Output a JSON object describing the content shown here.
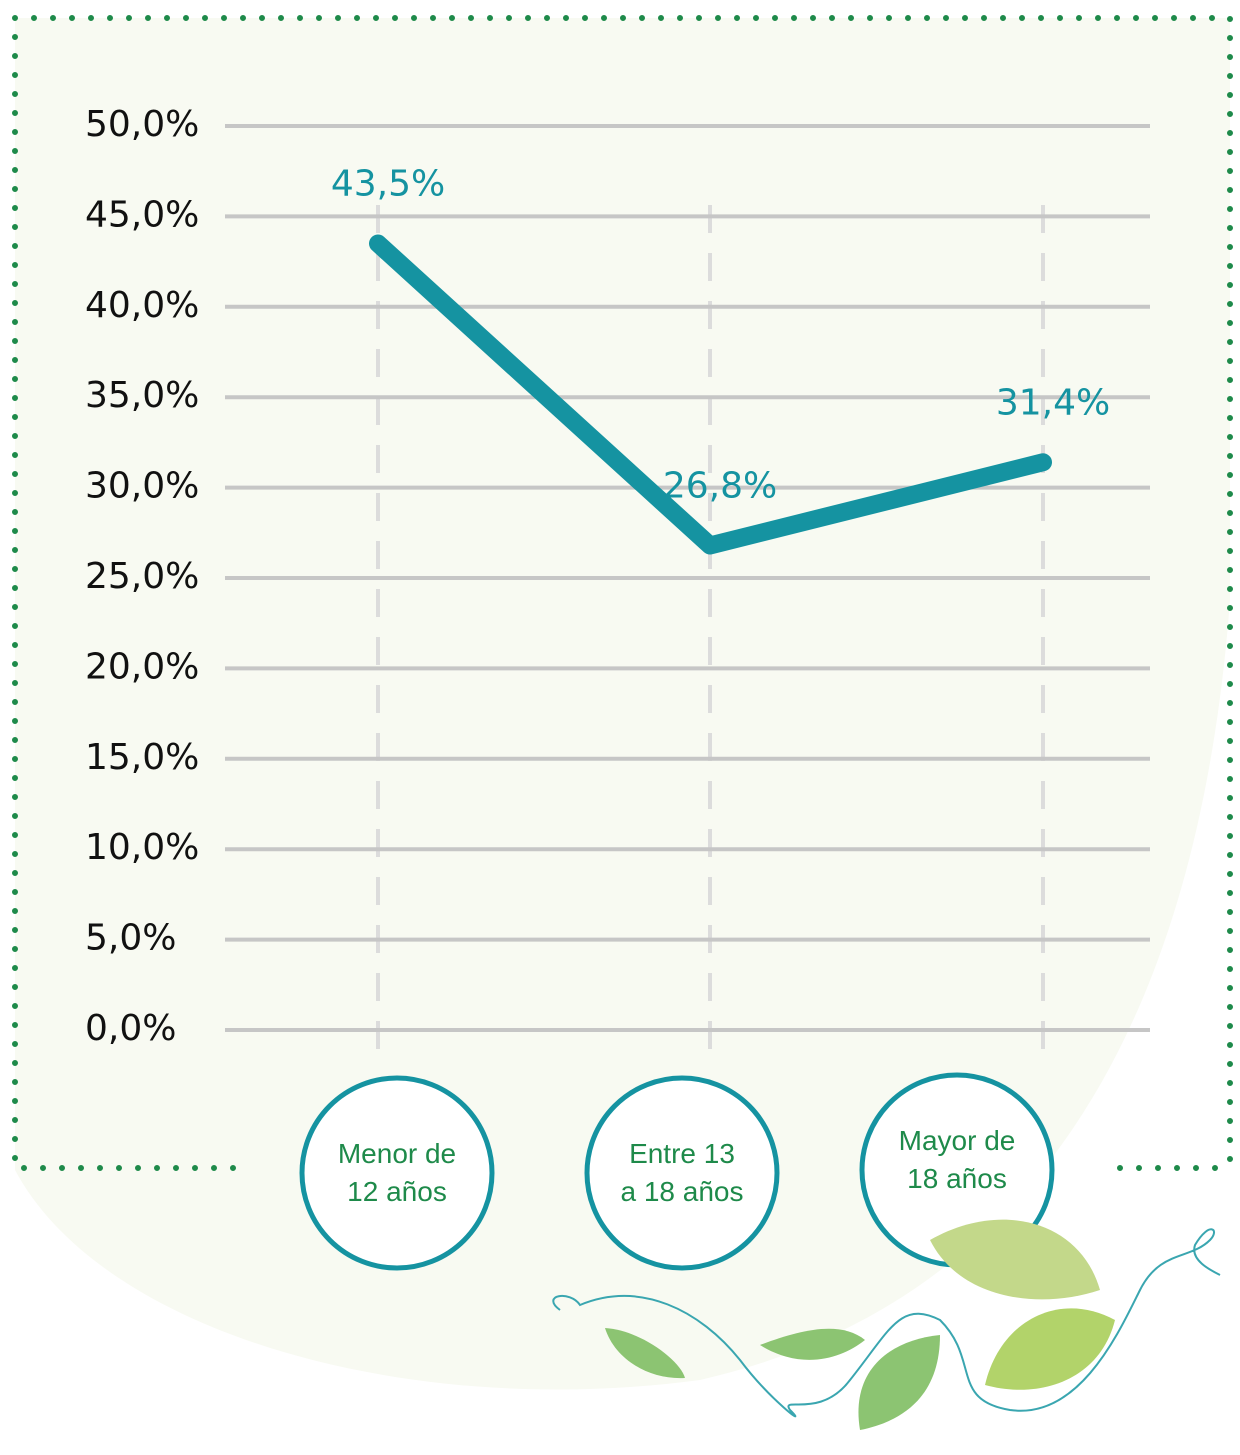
{
  "chart_data": {
    "type": "line",
    "categories": [
      "Menor de 12 años",
      "Entre 13 a 18 años",
      "Mayor de 18 años"
    ],
    "series": [
      {
        "color": "#1593a1",
        "values": [
          43.5,
          26.8,
          31.4
        ],
        "value_labels": [
          "43,5%",
          "26,8%",
          "31,4%"
        ]
      }
    ],
    "ylim": [
      0,
      50
    ],
    "yticks": [
      {
        "value": 0,
        "label": "0,0%"
      },
      {
        "value": 5,
        "label": "5,0%"
      },
      {
        "value": 10,
        "label": "10,0%"
      },
      {
        "value": 15,
        "label": "15,0%"
      },
      {
        "value": 20,
        "label": "20,0%"
      },
      {
        "value": 25,
        "label": "25,0%"
      },
      {
        "value": 30,
        "label": "30,0%"
      },
      {
        "value": 35,
        "label": "35,0%"
      },
      {
        "value": 40,
        "label": "40,0%"
      },
      {
        "value": 45,
        "label": "45,0%"
      },
      {
        "value": 50,
        "label": "50,0%"
      }
    ],
    "grid": true
  }
}
